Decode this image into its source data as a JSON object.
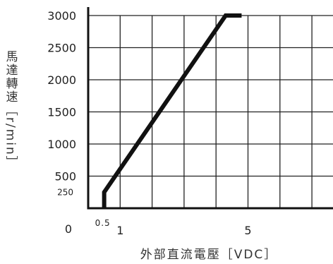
{
  "chart_data": {
    "type": "line",
    "ylabel": "馬達轉速［r/min］",
    "xlabel": "外部直流電壓［VDC］",
    "x": [
      0.5,
      0.5,
      4.3,
      4.8
    ],
    "y": [
      0,
      250,
      3000,
      3000
    ],
    "xlim": [
      0,
      7.2
    ],
    "ylim": [
      0,
      3100
    ],
    "x_ticks": [
      "0.5",
      "1",
      "5"
    ],
    "y_ticks": [
      "250",
      "500",
      "1000",
      "1500",
      "2000",
      "2500",
      "3000"
    ],
    "origin_label": "0",
    "grid": true,
    "line_color": "#111111",
    "grid_color": "#222222"
  }
}
